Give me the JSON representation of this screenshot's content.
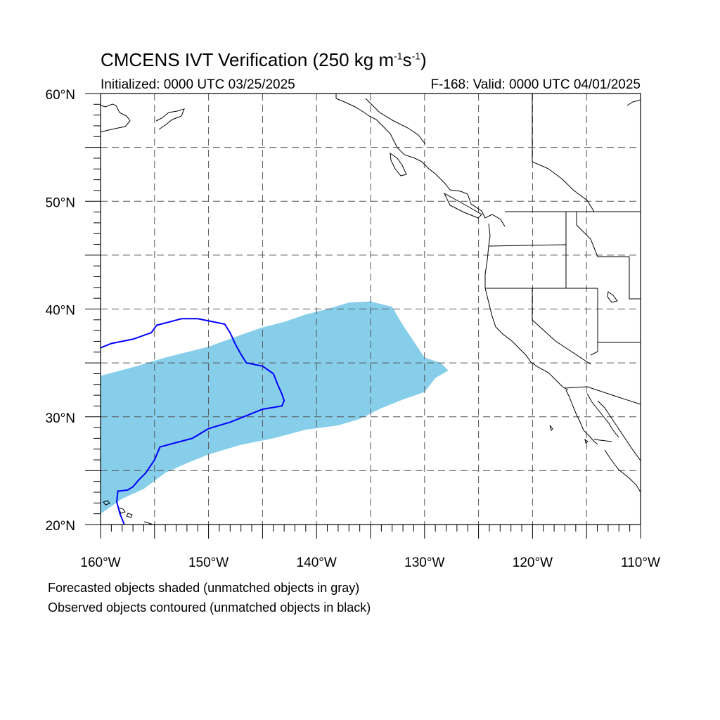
{
  "title": {
    "main": "CMCENS IVT Verification (250 kg m",
    "sup1": "-1",
    "mid": "s",
    "sup2": "-1",
    "end": ")"
  },
  "subtitle_left": "Initialized: 0000 UTC 03/25/2025",
  "subtitle_right": "F-168: Valid: 0000 UTC 04/01/2025",
  "axes": {
    "lon_range": [
      -160,
      -110
    ],
    "lat_range": [
      20,
      60
    ],
    "lon_labels": [
      {
        "lon": -160,
        "text": "160°W"
      },
      {
        "lon": -150,
        "text": "150°W"
      },
      {
        "lon": -140,
        "text": "140°W"
      },
      {
        "lon": -130,
        "text": "130°W"
      },
      {
        "lon": -120,
        "text": "120°W"
      },
      {
        "lon": -110,
        "text": "110°W"
      }
    ],
    "lat_labels": [
      {
        "lat": 60,
        "text": "60°N"
      },
      {
        "lat": 50,
        "text": "50°N"
      },
      {
        "lat": 40,
        "text": "40°N"
      },
      {
        "lat": 30,
        "text": "30°N"
      },
      {
        "lat": 20,
        "text": "20°N"
      }
    ],
    "grid_spacing_deg": 5,
    "grid": "dashed"
  },
  "forecast_color": "#87ceeb",
  "observed_color": "#0000ff",
  "forecast_object": [
    [
      -160,
      21
    ],
    [
      -160,
      33.8
    ],
    [
      -157,
      34.6
    ],
    [
      -154,
      35.5
    ],
    [
      -150,
      36.5
    ],
    [
      -147,
      37.6
    ],
    [
      -145,
      38.3
    ],
    [
      -143,
      38.8
    ],
    [
      -141,
      39.5
    ],
    [
      -139,
      40
    ],
    [
      -137,
      40.6
    ],
    [
      -135,
      40.7
    ],
    [
      -133,
      40.2
    ],
    [
      -132,
      38.5
    ],
    [
      -131,
      37
    ],
    [
      -130,
      35.5
    ],
    [
      -128.5,
      35
    ],
    [
      -127.8,
      34.3
    ],
    [
      -129,
      33.6
    ],
    [
      -130,
      32.3
    ],
    [
      -132,
      31.6
    ],
    [
      -134,
      30.8
    ],
    [
      -136,
      29.8
    ],
    [
      -138,
      29.2
    ],
    [
      -141,
      28.8
    ],
    [
      -144,
      28
    ],
    [
      -147,
      27.4
    ],
    [
      -150,
      26.5
    ],
    [
      -152,
      25.7
    ],
    [
      -154,
      24.8
    ],
    [
      -156,
      23.3
    ],
    [
      -158,
      22.4
    ],
    [
      -160,
      21
    ]
  ],
  "observed_object": [
    [
      -160,
      36.4
    ],
    [
      -159,
      36.8
    ],
    [
      -157,
      37.2
    ],
    [
      -155.3,
      37.8
    ],
    [
      -154.8,
      38.5
    ],
    [
      -154,
      38.7
    ],
    [
      -152.5,
      39.1
    ],
    [
      -151,
      39.1
    ],
    [
      -149.5,
      38.8
    ],
    [
      -148.5,
      38.6
    ],
    [
      -148,
      37.8
    ],
    [
      -147.5,
      36.7
    ],
    [
      -147,
      35.8
    ],
    [
      -146.5,
      35
    ],
    [
      -145,
      34.7
    ],
    [
      -144,
      34
    ],
    [
      -143.6,
      33
    ],
    [
      -143.2,
      32.1
    ],
    [
      -143,
      31.5
    ],
    [
      -143.2,
      31
    ],
    [
      -145,
      30.7
    ],
    [
      -146,
      30.3
    ],
    [
      -148,
      29.5
    ],
    [
      -150,
      28.9
    ],
    [
      -151.5,
      28
    ],
    [
      -153,
      27.6
    ],
    [
      -154.5,
      27.2
    ],
    [
      -155,
      26
    ],
    [
      -155.8,
      24.8
    ],
    [
      -156.5,
      24.1
    ],
    [
      -157,
      23.5
    ],
    [
      -157.5,
      23.2
    ],
    [
      -158.4,
      23.1
    ],
    [
      -158.5,
      22.1
    ],
    [
      -158.2,
      21
    ],
    [
      -157.8,
      20
    ]
  ],
  "captions": [
    "Forecasted objects shaded (unmatched objects in gray)",
    "Observed objects contoured (unmatched objects in black)"
  ]
}
